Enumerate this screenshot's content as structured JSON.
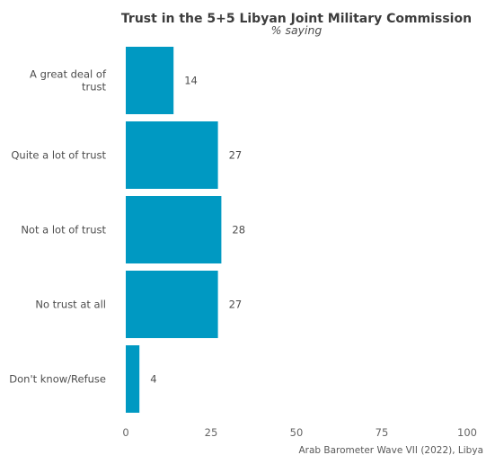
{
  "chart_data": {
    "type": "bar",
    "orientation": "horizontal",
    "title": "Trust in the 5+5 Libyan Joint Military Commission",
    "subtitle": "% saying",
    "categories": [
      [
        "A great deal of",
        "trust"
      ],
      [
        "Quite a lot of trust"
      ],
      [
        "Not a lot of trust"
      ],
      [
        "No trust at all"
      ],
      [
        "Don't know/Refuse"
      ]
    ],
    "values": [
      14,
      27,
      28,
      27,
      4
    ],
    "xlim": [
      0,
      100
    ],
    "xticks": [
      0,
      25,
      50,
      75,
      100
    ],
    "xlabel": "",
    "ylabel": "",
    "grid": false,
    "legend": "none",
    "bar_color": "#0099c2",
    "caption": "Arab Barometer Wave VII (2022), Libya"
  }
}
